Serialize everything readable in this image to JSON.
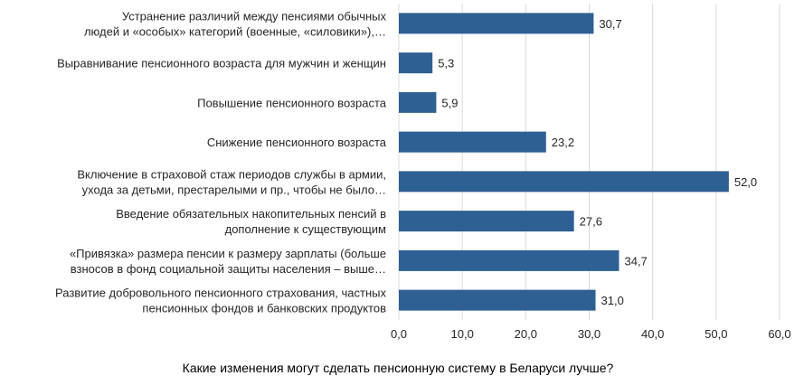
{
  "colors": {
    "bar": "#2e6094",
    "grid": "#d9d9d9",
    "text": "#262626"
  },
  "chart_data": {
    "type": "bar",
    "orientation": "horizontal",
    "categories": [
      [
        "Устранение различий между пенсиями обычных",
        "людей и «особых» категорий (военные, «силовики»),…"
      ],
      [
        "Выравнивание пенсионного возраста для мужчин и женщин"
      ],
      [
        "Повышение пенсионного возраста"
      ],
      [
        "Снижение пенсионного возраста"
      ],
      [
        "Включение в страховой стаж периодов службы в армии,",
        "ухода за детьми, престарелыми и пр., чтобы не было…"
      ],
      [
        "Введение обязательных накопительных пенсий в",
        "дополнение к существующим"
      ],
      [
        "«Привязка» размера пенсии к размеру зарплаты (больше",
        "взносов в фонд социальной защиты населения – выше…"
      ],
      [
        "Развитие добровольного пенсионного страхования, частных",
        "пенсионных фондов и банковских продуктов"
      ]
    ],
    "values": [
      30.7,
      5.3,
      5.9,
      23.2,
      52.0,
      27.6,
      34.7,
      31.0
    ],
    "value_labels": [
      "30,7",
      "5,3",
      "5,9",
      "23,2",
      "52,0",
      "27,6",
      "34,7",
      "31,0"
    ],
    "xlim": [
      0,
      60
    ],
    "ticks": [
      0,
      10,
      20,
      30,
      40,
      50,
      60
    ],
    "tick_labels": [
      "0,0",
      "10,0",
      "20,0",
      "30,0",
      "40,0",
      "50,0",
      "60,0"
    ],
    "xlabel": "Какие изменения могут сделать пенсионную систему в Беларуси лучше?",
    "grid": "vertical",
    "legend": "none"
  }
}
